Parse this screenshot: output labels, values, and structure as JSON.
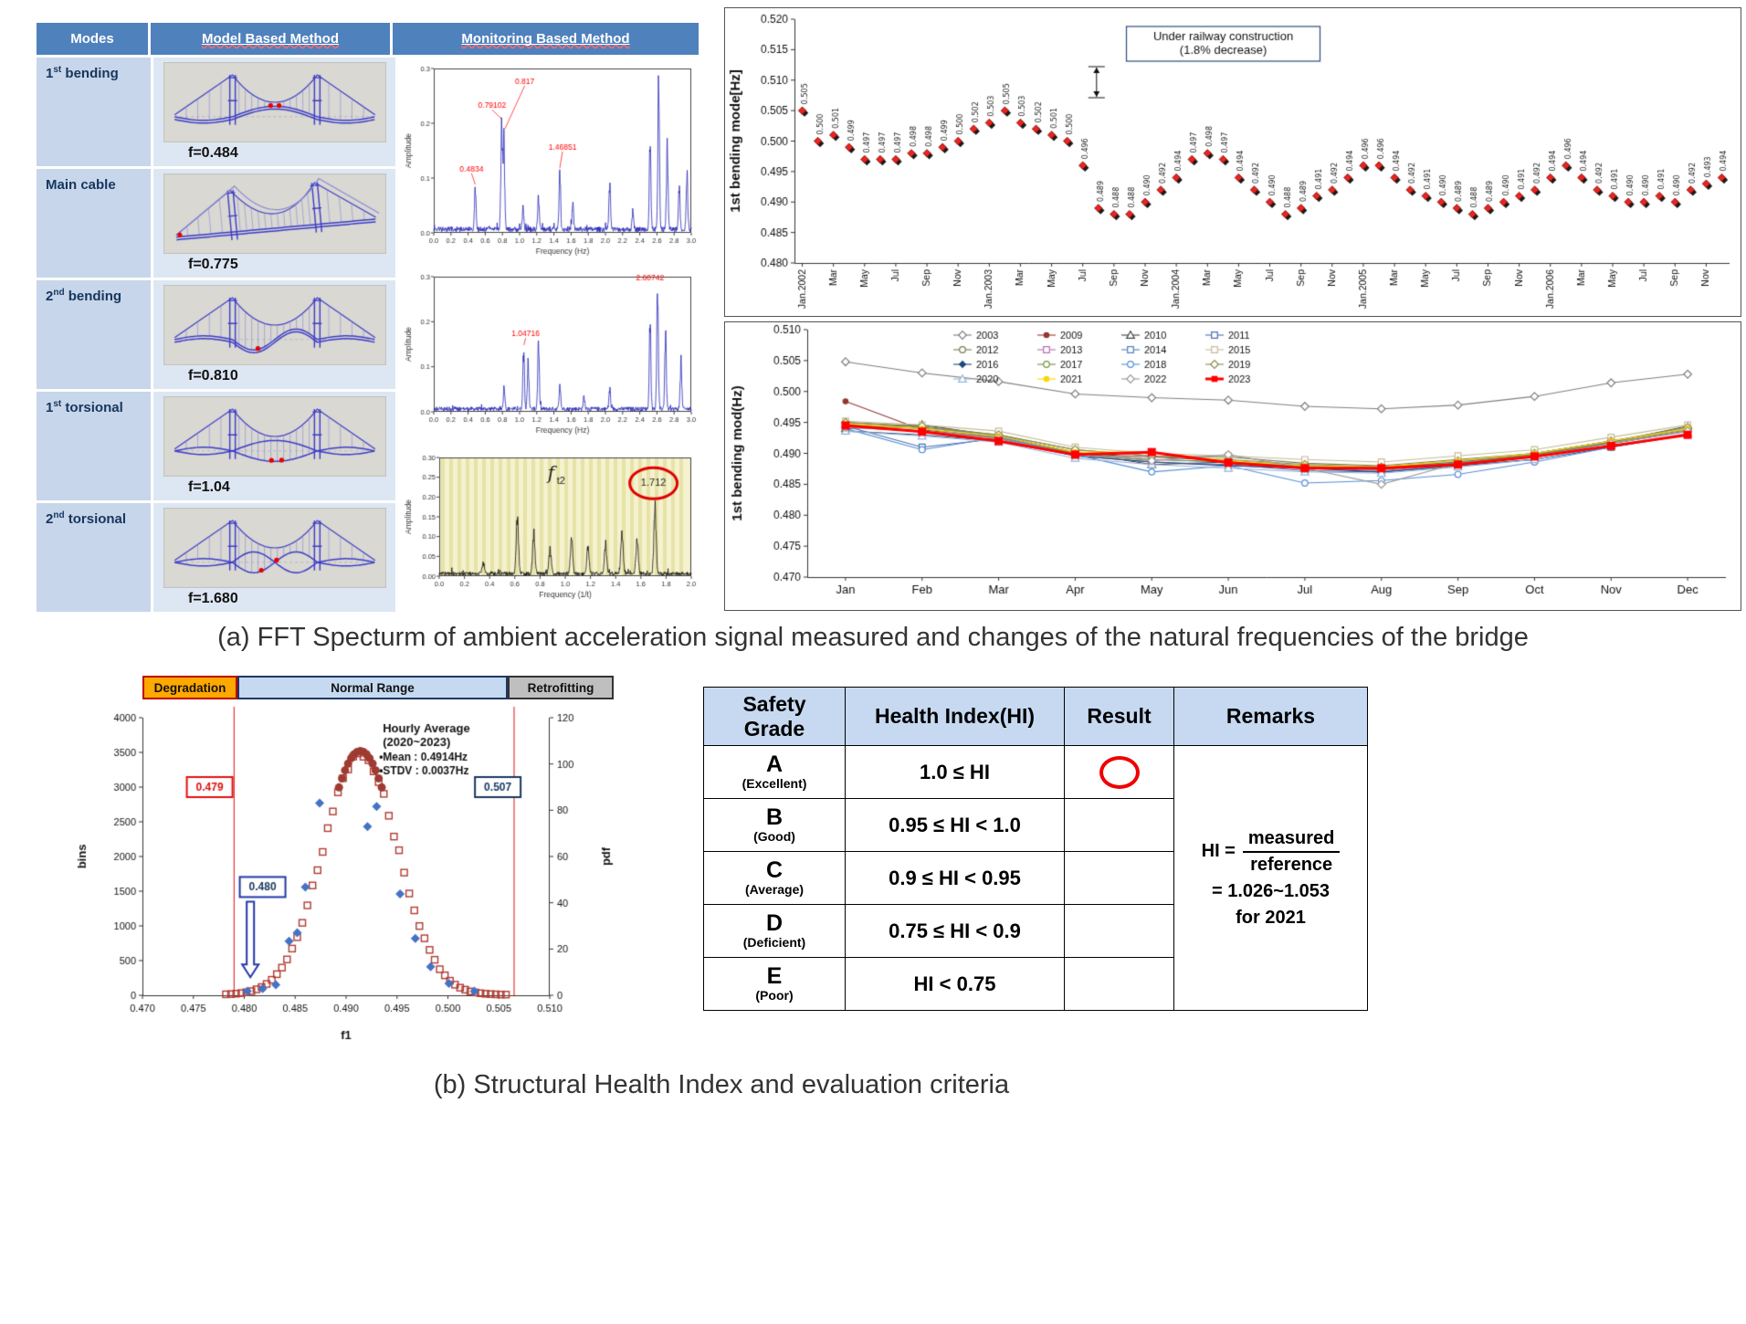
{
  "captions": {
    "a": "(a) FFT Specturm of ambient acceleration signal measured and changes of the natural frequencies of the bridge",
    "b": "(b) Structural Health Index and evaluation criteria"
  },
  "modes_table": {
    "headers": [
      "Modes",
      "Model Based Method",
      "Monitoring Based Method"
    ],
    "rows": [
      {
        "label_num": "1",
        "label_sup": "st",
        "label_rest": " bending",
        "freq": "f=0.484",
        "shape": "bend1"
      },
      {
        "label_num": "Main cable",
        "label_sup": "",
        "label_rest": "",
        "freq": "f=0.775",
        "shape": "cable3d"
      },
      {
        "label_num": "2",
        "label_sup": "nd",
        "label_rest": " bending",
        "freq": "f=0.810",
        "shape": "bend2"
      },
      {
        "label_num": "1",
        "label_sup": "st",
        "label_rest": " torsional",
        "freq": "f=1.04",
        "shape": "tors1"
      },
      {
        "label_num": "2",
        "label_sup": "nd",
        "label_rest": " torsional",
        "freq": "f=1.680",
        "shape": "tors2"
      }
    ]
  },
  "chart_data": [
    {
      "name": "fft_spectrum_1",
      "type": "line",
      "xlabel": "Frequency (Hz)",
      "ylabel": "Amplitude",
      "xlim": [
        0,
        3.0
      ],
      "ylim": [
        0,
        0.3
      ],
      "xtick": 0.2,
      "ytick": 0.1,
      "line_color": "#2626b8",
      "seed": 11,
      "peaks": [
        {
          "f": 0.4834,
          "a": 0.085
        },
        {
          "f": 0.79102,
          "a": 0.205
        },
        {
          "f": 0.817,
          "a": 0.185
        },
        {
          "f": 1.04,
          "a": 0.045
        },
        {
          "f": 1.22,
          "a": 0.065
        },
        {
          "f": 1.46851,
          "a": 0.115
        },
        {
          "f": 1.62,
          "a": 0.05
        },
        {
          "f": 2.05,
          "a": 0.095
        },
        {
          "f": 2.32,
          "a": 0.035
        },
        {
          "f": 2.52,
          "a": 0.18
        },
        {
          "f": 2.62,
          "a": 0.3
        },
        {
          "f": 2.72,
          "a": 0.17
        },
        {
          "f": 2.86,
          "a": 0.09
        },
        {
          "f": 2.95,
          "a": 0.11
        }
      ],
      "peak_labels": [
        {
          "text": "0.4834",
          "x": 0.44,
          "y": 0.112,
          "to_f": 0.4834,
          "to_a": 0.088
        },
        {
          "text": "0.79102",
          "x": 0.68,
          "y": 0.228,
          "to_f": 0.79,
          "to_a": 0.208
        },
        {
          "text": "0.817",
          "x": 1.06,
          "y": 0.272,
          "to_f": 0.83,
          "to_a": 0.19
        },
        {
          "text": "1.46851",
          "x": 1.5,
          "y": 0.152,
          "to_f": 1.468,
          "to_a": 0.118
        }
      ]
    },
    {
      "name": "fft_spectrum_2",
      "type": "line",
      "xlabel": "Frequency (Hz)",
      "ylabel": "Amplitude",
      "xlim": [
        0,
        3.0
      ],
      "ylim": [
        0,
        0.3
      ],
      "xtick": 0.2,
      "ytick": 0.1,
      "line_color": "#2626b8",
      "seed": 23,
      "peaks": [
        {
          "f": 0.82,
          "a": 0.055
        },
        {
          "f": 1.047,
          "a": 0.145
        },
        {
          "f": 1.1,
          "a": 0.115
        },
        {
          "f": 1.22,
          "a": 0.165
        },
        {
          "f": 1.47,
          "a": 0.06
        },
        {
          "f": 1.75,
          "a": 0.03
        },
        {
          "f": 2.05,
          "a": 0.05
        },
        {
          "f": 2.52,
          "a": 0.22
        },
        {
          "f": 2.607,
          "a": 0.3
        },
        {
          "f": 2.7,
          "a": 0.19
        },
        {
          "f": 2.88,
          "a": 0.12
        }
      ],
      "peak_labels": [
        {
          "text": "1.04716",
          "x": 1.07,
          "y": 0.168,
          "to_f": 1.05,
          "to_a": 0.148
        },
        {
          "text": "2.60742",
          "x": 2.52,
          "y": 0.292
        }
      ]
    },
    {
      "name": "fft_spectrum_3",
      "type": "line",
      "xlabel": "Frequency (1/t)",
      "ylabel": "Amplitude",
      "xlim": [
        0,
        2.0
      ],
      "ylim": [
        0,
        0.3
      ],
      "xtick": 0.2,
      "ytick": 0.05,
      "line_color": "#151515",
      "bg": "#f5f2cf",
      "stripes": true,
      "seed": 37,
      "mode_label": "f",
      "mode_label_sub": "t2",
      "circled_value": "1.712",
      "peaks": [
        {
          "f": 0.35,
          "a": 0.03
        },
        {
          "f": 0.62,
          "a": 0.16
        },
        {
          "f": 0.75,
          "a": 0.11
        },
        {
          "f": 0.88,
          "a": 0.07
        },
        {
          "f": 1.05,
          "a": 0.1
        },
        {
          "f": 1.18,
          "a": 0.075
        },
        {
          "f": 1.32,
          "a": 0.085
        },
        {
          "f": 1.45,
          "a": 0.115
        },
        {
          "f": 1.57,
          "a": 0.095
        },
        {
          "f": 1.712,
          "a": 0.185
        }
      ]
    },
    {
      "name": "bending_mode_timeseries",
      "type": "scatter",
      "ylabel": "1st bending mode[Hz]",
      "ylim": [
        0.48,
        0.52
      ],
      "ytick": 0.005,
      "marker_color": "#e8251f",
      "annotation": [
        "Under railway construction",
        "(1.8% decrease)"
      ],
      "drop_index": 19,
      "x_tick_labels": [
        "Jan.2002",
        "Mar",
        "May",
        "Jul",
        "Sep",
        "Nov",
        "Jan.2003",
        "Mar",
        "May",
        "Jul",
        "Sep",
        "Nov",
        "Jan.2004",
        "Mar",
        "May",
        "Jul",
        "Sep",
        "Nov",
        "Jan.2005",
        "Mar",
        "May",
        "Jul",
        "Sep",
        "Nov",
        "Jan.2006",
        "Mar",
        "May",
        "Jul",
        "Sep",
        "Nov"
      ],
      "values": [
        0.505,
        0.5,
        0.501,
        0.499,
        0.497,
        0.497,
        0.497,
        0.498,
        0.498,
        0.499,
        0.5,
        0.502,
        0.503,
        0.505,
        0.503,
        0.502,
        0.501,
        0.5,
        0.496,
        0.489,
        0.488,
        0.488,
        0.49,
        0.492,
        0.494,
        0.497,
        0.498,
        0.497,
        0.494,
        0.492,
        0.49,
        0.488,
        0.489,
        0.491,
        0.492,
        0.494,
        0.496,
        0.496,
        0.494,
        0.492,
        0.491,
        0.49,
        0.489,
        0.488,
        0.489,
        0.49,
        0.491,
        0.492,
        0.494,
        0.496,
        0.494,
        0.492,
        0.491,
        0.49,
        0.49,
        0.491,
        0.49,
        0.492,
        0.493,
        0.494
      ]
    },
    {
      "name": "bending_mode_monthly",
      "type": "line",
      "ylabel": "1st bending mod(Hz)",
      "ylim": [
        0.47,
        0.51
      ],
      "ytick": 0.005,
      "categories": [
        "Jan",
        "Feb",
        "Mar",
        "Apr",
        "May",
        "Jun",
        "Jul",
        "Aug",
        "Sep",
        "Oct",
        "Nov",
        "Dec"
      ],
      "series": [
        {
          "name": "2003",
          "color": "#7f7f7f",
          "marker": "diamond",
          "filled": false,
          "values": [
            0.5048,
            0.503,
            0.5016,
            0.4996,
            0.499,
            0.4986,
            0.4976,
            0.4972,
            0.4978,
            0.4992,
            0.5014,
            0.5028
          ]
        },
        {
          "name": "2009",
          "color": "#943634",
          "marker": "circle",
          "filled": true,
          "values": [
            0.4984,
            0.4938,
            0.4924,
            0.49,
            0.4894,
            0.4888,
            0.488,
            0.4878,
            0.4886,
            0.4898,
            0.4916,
            0.4936
          ]
        },
        {
          "name": "2010",
          "color": "#3f3f3f",
          "marker": "triangle",
          "filled": false,
          "values": [
            0.494,
            0.4946,
            0.4928,
            0.4902,
            0.4882,
            0.4886,
            0.4878,
            0.4874,
            0.4884,
            0.4894,
            0.4918,
            0.4944
          ]
        },
        {
          "name": "2011",
          "color": "#4a6fae",
          "marker": "square",
          "filled": false,
          "values": [
            0.4944,
            0.491,
            0.4924,
            0.4896,
            0.4886,
            0.4882,
            0.4872,
            0.487,
            0.488,
            0.489,
            0.491,
            0.4932
          ]
        },
        {
          "name": "2012",
          "color": "#7a7a52",
          "marker": "circle",
          "filled": false,
          "values": [
            0.495,
            0.4942,
            0.493,
            0.4906,
            0.4896,
            0.4894,
            0.4884,
            0.488,
            0.489,
            0.49,
            0.492,
            0.494
          ]
        },
        {
          "name": "2013",
          "color": "#b672b6",
          "marker": "square",
          "filled": false,
          "values": [
            0.4942,
            0.4936,
            0.4926,
            0.4896,
            0.4886,
            0.488,
            0.4876,
            0.4872,
            0.4882,
            0.4896,
            0.4916,
            0.4936
          ]
        },
        {
          "name": "2014",
          "color": "#4f81bd",
          "marker": "square",
          "filled": false,
          "values": [
            0.4946,
            0.494,
            0.493,
            0.49,
            0.489,
            0.4886,
            0.488,
            0.4876,
            0.4886,
            0.49,
            0.492,
            0.494
          ]
        },
        {
          "name": "2015",
          "color": "#c4bd97",
          "marker": "square",
          "filled": false,
          "values": [
            0.4952,
            0.4946,
            0.4936,
            0.491,
            0.49,
            0.4896,
            0.489,
            0.4886,
            0.4896,
            0.4906,
            0.4926,
            0.4946
          ]
        },
        {
          "name": "2016",
          "color": "#1f497d",
          "marker": "diamond",
          "filled": true,
          "values": [
            0.4936,
            0.493,
            0.492,
            0.4896,
            0.4886,
            0.488,
            0.4876,
            0.487,
            0.488,
            0.489,
            0.491,
            0.493
          ]
        },
        {
          "name": "2017",
          "color": "#77933c",
          "marker": "circle",
          "filled": false,
          "values": [
            0.4946,
            0.494,
            0.4926,
            0.49,
            0.489,
            0.4886,
            0.4878,
            0.4874,
            0.4884,
            0.4898,
            0.4918,
            0.4938
          ]
        },
        {
          "name": "2018",
          "color": "#558ed5",
          "marker": "circle",
          "filled": false,
          "values": [
            0.494,
            0.4906,
            0.4926,
            0.4898,
            0.487,
            0.488,
            0.4852,
            0.4856,
            0.4866,
            0.4886,
            0.491,
            0.493
          ]
        },
        {
          "name": "2019",
          "color": "#8c8a4e",
          "marker": "diamond",
          "filled": false,
          "values": [
            0.495,
            0.4944,
            0.493,
            0.4906,
            0.4896,
            0.489,
            0.4882,
            0.4878,
            0.4888,
            0.49,
            0.492,
            0.4942
          ]
        },
        {
          "name": "2020",
          "color": "#95b3d7",
          "marker": "triangle",
          "filled": false,
          "values": [
            0.4936,
            0.4928,
            0.4918,
            0.4892,
            0.4882,
            0.4876,
            0.487,
            0.4868,
            0.4878,
            0.489,
            0.4912,
            0.4932
          ]
        },
        {
          "name": "2021",
          "color": "#ffd400",
          "marker": "circle",
          "filled": true,
          "values": [
            0.4948,
            0.494,
            0.4928,
            0.4902,
            0.4902,
            0.4888,
            0.488,
            0.4878,
            0.4888,
            0.49,
            0.492,
            0.494
          ]
        },
        {
          "name": "2022",
          "color": "#999999",
          "marker": "diamond",
          "filled": false,
          "values": [
            0.4942,
            0.4936,
            0.4924,
            0.4898,
            0.4888,
            0.4898,
            0.4876,
            0.485,
            0.4884,
            0.4896,
            0.4916,
            0.4936
          ]
        },
        {
          "name": "2023",
          "color": "#ff0000",
          "marker": "square",
          "filled": true,
          "width": 3,
          "values": [
            0.4945,
            0.4935,
            0.492,
            0.4898,
            0.4902,
            0.4885,
            0.4876,
            0.4876,
            0.4882,
            0.4895,
            0.4912,
            0.493
          ]
        }
      ]
    },
    {
      "name": "frequency_distribution",
      "type": "scatter",
      "xlabel": "f1",
      "ylabel_left": "bins",
      "ylabel_right": "pdf",
      "xlim": [
        0.47,
        0.51
      ],
      "xtick": 0.005,
      "ylim_left": [
        0,
        4000
      ],
      "ytick_left": 500,
      "ylim_right": [
        0,
        120
      ],
      "ytick_right": 20,
      "gaussian": {
        "mean": 0.4914,
        "sigma": 0.0037,
        "peak_bins": 3450
      },
      "stats_lines": [
        "Hourly Average",
        "(2020~2023)",
        "•Mean : 0.4914Hz",
        "•STDV : 0.0037Hz"
      ],
      "thresholds": {
        "lower": 0.479,
        "upper": 0.5065,
        "arrow_x": 0.4806,
        "lower_label": "0.479",
        "upper_label": "0.507",
        "arrow_label": "0.480"
      },
      "bands": [
        {
          "label": "Degradation",
          "bg": "#ffa800",
          "border": "#c00000"
        },
        {
          "label": "Normal Range",
          "bg": "#c5d9f1",
          "border": "#1f3864"
        },
        {
          "label": "Retrofitting",
          "bg": "#bfbfbf",
          "border": "#333333"
        }
      ],
      "blue_points": [
        [
          0.4803,
          60
        ],
        [
          0.4818,
          95
        ],
        [
          0.4831,
          150
        ],
        [
          0.4844,
          780
        ],
        [
          0.4852,
          900
        ],
        [
          0.486,
          1560
        ],
        [
          0.4874,
          2770
        ],
        [
          0.4921,
          2430
        ],
        [
          0.493,
          2720
        ],
        [
          0.4953,
          1460
        ],
        [
          0.4968,
          820
        ],
        [
          0.4983,
          410
        ],
        [
          0.5001,
          170
        ],
        [
          0.5026,
          60
        ]
      ],
      "red_square_color": "#b03a30",
      "cap_color": "#9e3b32",
      "blue_color": "#4472c4"
    }
  ],
  "safety_table": {
    "headers": [
      "Safety Grade",
      "Health Index(HI)",
      "Result",
      "Remarks"
    ],
    "rows": [
      {
        "grade": "A",
        "desc": "(Excellent)",
        "hi": "1.0 ≤ HI",
        "result": "circle"
      },
      {
        "grade": "B",
        "desc": "(Good)",
        "hi": "0.95 ≤ HI < 1.0",
        "result": ""
      },
      {
        "grade": "C",
        "desc": "(Average)",
        "hi": "0.9 ≤ HI < 0.95",
        "result": ""
      },
      {
        "grade": "D",
        "desc": "(Deficient)",
        "hi": "0.75 ≤ HI < 0.9",
        "result": ""
      },
      {
        "grade": "E",
        "desc": "(Poor)",
        "hi": "HI < 0.75",
        "result": ""
      }
    ],
    "remarks": {
      "lhs": "HI  =",
      "numerator": "measured",
      "denominator": "reference",
      "line2": "= 1.026~1.053",
      "line3": "for 2021"
    }
  }
}
